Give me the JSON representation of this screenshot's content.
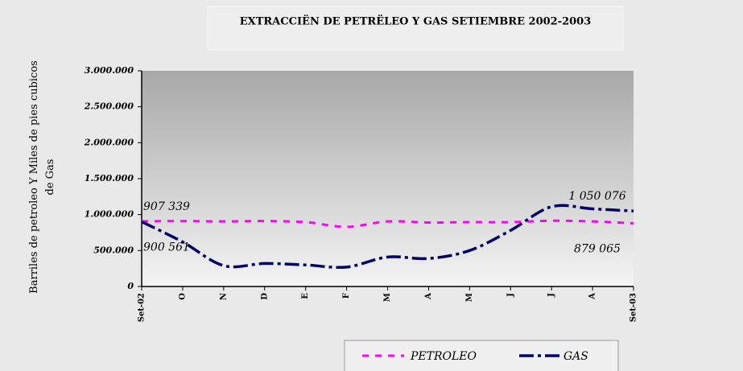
{
  "chart_data": {
    "type": "line",
    "title": "EXTRACCIËN DE PETRËLEO Y GAS  SETIEMBRE 2002-2003",
    "y_label": "Barriles de petroleo Y Miles de pies cubicos de Gas",
    "categories": [
      "Set-02",
      "O",
      "N",
      "D",
      "E",
      "F",
      "M",
      "A",
      "M",
      "J",
      "J",
      "A",
      "Set-03"
    ],
    "series": [
      {
        "name": "PETROLEO",
        "color": "#ff00ff",
        "values": [
          907339,
          910000,
          905000,
          910000,
          895000,
          830000,
          905000,
          890000,
          895000,
          895000,
          915000,
          905000,
          879065
        ],
        "value_labels": [
          "907 339",
          null,
          null,
          null,
          null,
          null,
          null,
          null,
          null,
          null,
          null,
          null,
          "879 065"
        ]
      },
      {
        "name": "GAS",
        "color": "#000066",
        "values": [
          900561,
          620000,
          290000,
          320000,
          300000,
          270000,
          410000,
          390000,
          500000,
          780000,
          1110000,
          1080000,
          1050076
        ],
        "value_labels": [
          "900 561",
          null,
          null,
          null,
          null,
          null,
          null,
          null,
          null,
          null,
          null,
          null,
          "1 050 076"
        ]
      }
    ],
    "ylim": [
      0,
      3000000
    ],
    "yticks": [
      0,
      {
        "value": 500000,
        "label": "500.000"
      },
      {
        "value": 1000000,
        "label": "1.000.000"
      },
      {
        "value": 1500000,
        "label": "1.500.000"
      },
      {
        "value": 2000000,
        "label": "2.000.000"
      },
      {
        "value": 2500000,
        "label": "2.500.000"
      },
      {
        "value": 3000000,
        "label": "3.000.000"
      }
    ],
    "legend": "bottom"
  }
}
